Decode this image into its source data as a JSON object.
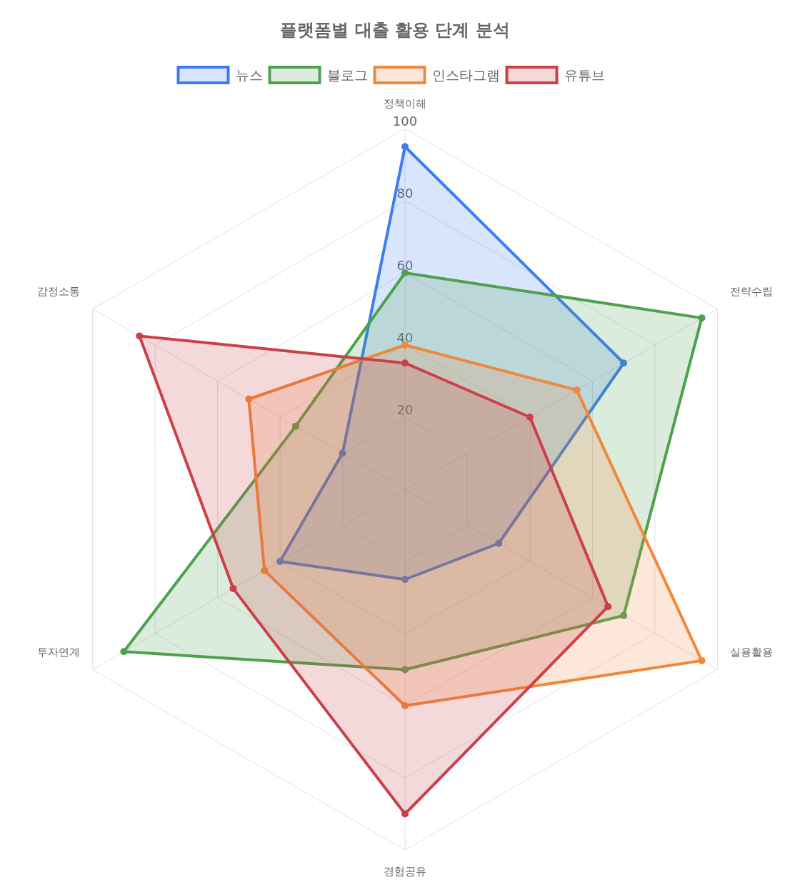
{
  "chart_data": {
    "type": "radar",
    "title": "플랫폼별 대출 활용 단계 분석",
    "categories": [
      "정책이해",
      "전략수립",
      "실용활용",
      "경험공유",
      "투자연계",
      "감정소통"
    ],
    "series": [
      {
        "name": "뉴스",
        "color": "#3b7cf4",
        "values": [
          95,
          70,
          30,
          25,
          40,
          20
        ]
      },
      {
        "name": "블로그",
        "color": "#4ea24e",
        "values": [
          60,
          95,
          70,
          50,
          90,
          35
        ]
      },
      {
        "name": "인스타그램",
        "color": "#f0883a",
        "values": [
          40,
          55,
          95,
          60,
          45,
          50
        ]
      },
      {
        "name": "유튜브",
        "color": "#cc4048",
        "values": [
          35,
          40,
          65,
          90,
          55,
          85
        ]
      }
    ],
    "ylim": [
      0,
      100
    ],
    "yticks": [
      20,
      40,
      60,
      80,
      100
    ],
    "grid": true,
    "legend": "top",
    "marker": "circle"
  }
}
